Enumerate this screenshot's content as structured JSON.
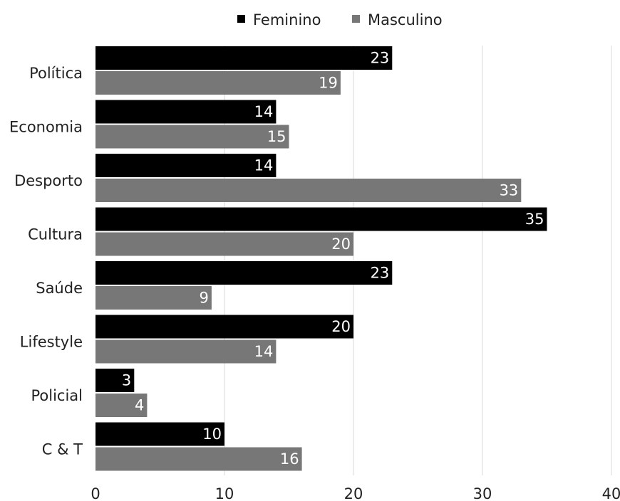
{
  "chart_data": {
    "type": "bar",
    "orientation": "horizontal",
    "categories": [
      "Política",
      "Economia",
      "Desporto",
      "Cultura",
      "Saúde",
      "Lifestyle",
      "Policial",
      "C & T"
    ],
    "series": [
      {
        "name": "Feminino",
        "color": "#000000",
        "values": [
          23,
          14,
          14,
          35,
          23,
          20,
          3,
          10
        ]
      },
      {
        "name": "Masculino",
        "color": "#777777",
        "values": [
          19,
          15,
          33,
          20,
          9,
          14,
          4,
          16
        ]
      }
    ],
    "xlim": [
      0,
      40
    ],
    "xticks": [
      0,
      10,
      20,
      30,
      40
    ],
    "grid": "vertical",
    "legend": "top-center",
    "data_labels": "inside-end"
  }
}
